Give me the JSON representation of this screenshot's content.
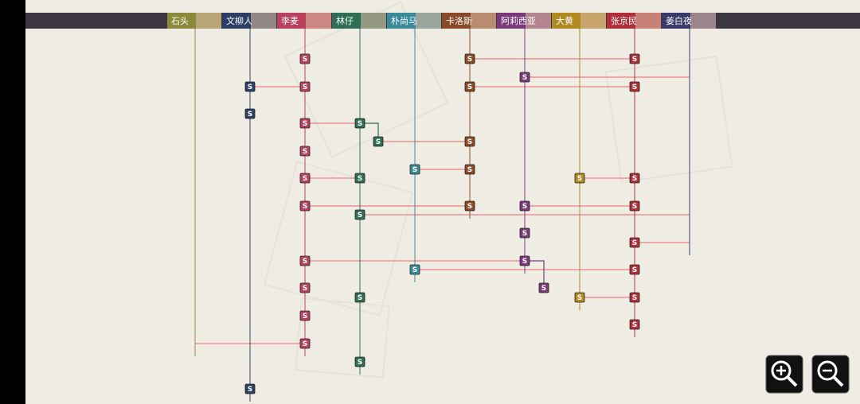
{
  "characters": [
    "石头",
    "文柳人",
    "李麦",
    "林仔",
    "朴尚马",
    "卡洛斯",
    "阿莉西亚",
    "大黄",
    "张京民",
    "姜白夜"
  ],
  "nodes": [
    "S",
    "S",
    "S",
    "S",
    "S",
    "S",
    "S",
    "S",
    "S",
    "S",
    "S",
    "S",
    "S",
    "S",
    "S",
    "S",
    "S",
    "S",
    "S",
    "S",
    "S",
    "S",
    "S",
    "S",
    "S",
    "S",
    "S",
    "S",
    "S",
    "S",
    "S",
    "S",
    "S",
    "S",
    "S",
    "S",
    "S",
    "S",
    "S",
    "S",
    "S"
  ]
}
